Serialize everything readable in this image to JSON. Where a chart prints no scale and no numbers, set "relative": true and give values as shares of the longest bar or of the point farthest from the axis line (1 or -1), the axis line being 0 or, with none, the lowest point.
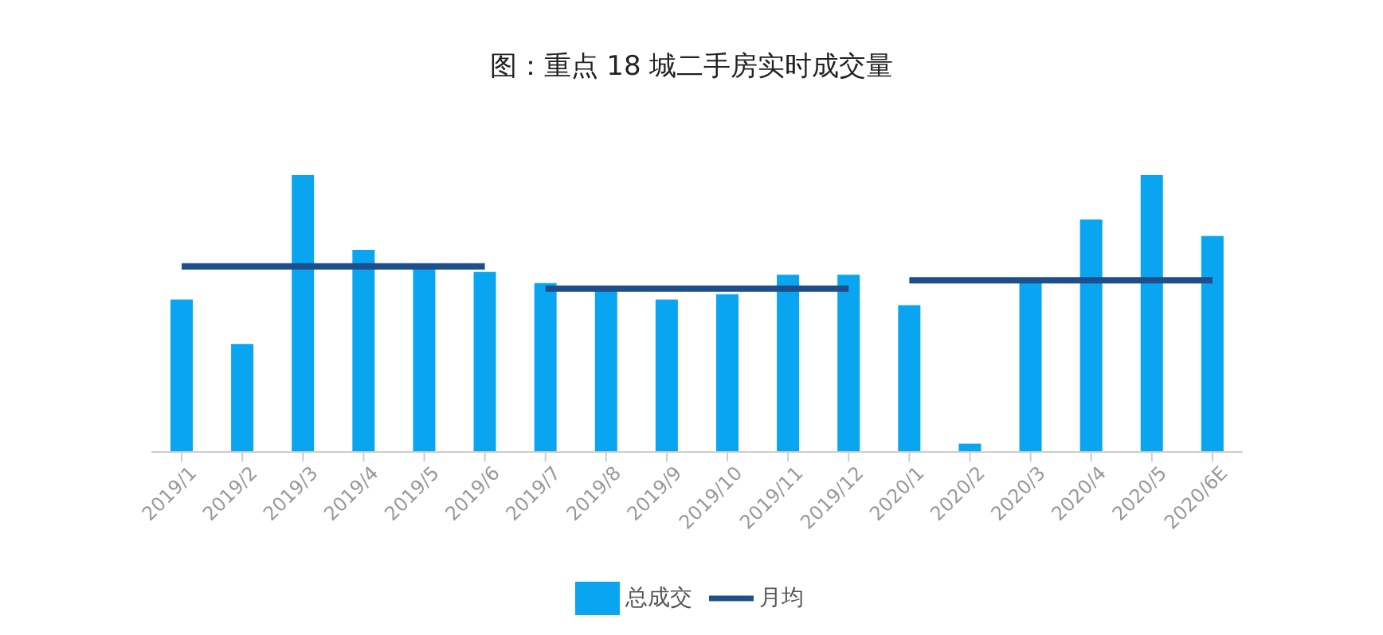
{
  "chart_data": {
    "type": "bar",
    "title": "图：重点 18 城二手房实时成交量",
    "relative": true,
    "categories": [
      "2019/1",
      "2019/2",
      "2019/3",
      "2019/4",
      "2019/5",
      "2019/6",
      "2019/7",
      "2019/8",
      "2019/9",
      "2019/10",
      "2019/11",
      "2019/12",
      "2020/1",
      "2020/2",
      "2020/3",
      "2020/4",
      "2020/5",
      "2020/6E"
    ],
    "series": [
      {
        "name": "总成交",
        "color": "#0aa5f0",
        "values": [
          0.55,
          0.39,
          1,
          0.73,
          0.68,
          0.65,
          0.61,
          0.59,
          0.55,
          0.57,
          0.64,
          0.64,
          0.53,
          0.03,
          0.61,
          0.84,
          1,
          0.78
        ]
      },
      {
        "name": "月均",
        "type": "line",
        "color": "#1f4e8c",
        "values": [
          0.67,
          0.67,
          0.67,
          0.67,
          0.67,
          0.67,
          null,
          null,
          null,
          null,
          null,
          null,
          null,
          null,
          null,
          null,
          null,
          null
        ]
      },
      {
        "type": "line",
        "color": "#1f4e8c",
        "values": [
          null,
          null,
          null,
          null,
          null,
          null,
          0.59,
          0.59,
          0.59,
          0.59,
          0.59,
          0.59,
          null,
          null,
          null,
          null,
          null,
          null
        ]
      },
      {
        "type": "line",
        "color": "#1f4e8c",
        "values": [
          null,
          null,
          null,
          null,
          null,
          null,
          null,
          null,
          null,
          null,
          null,
          null,
          0.62,
          0.62,
          0.62,
          0.62,
          0.62,
          0.62
        ]
      }
    ],
    "legend": "bottom",
    "grid": false,
    "marker": "none"
  }
}
